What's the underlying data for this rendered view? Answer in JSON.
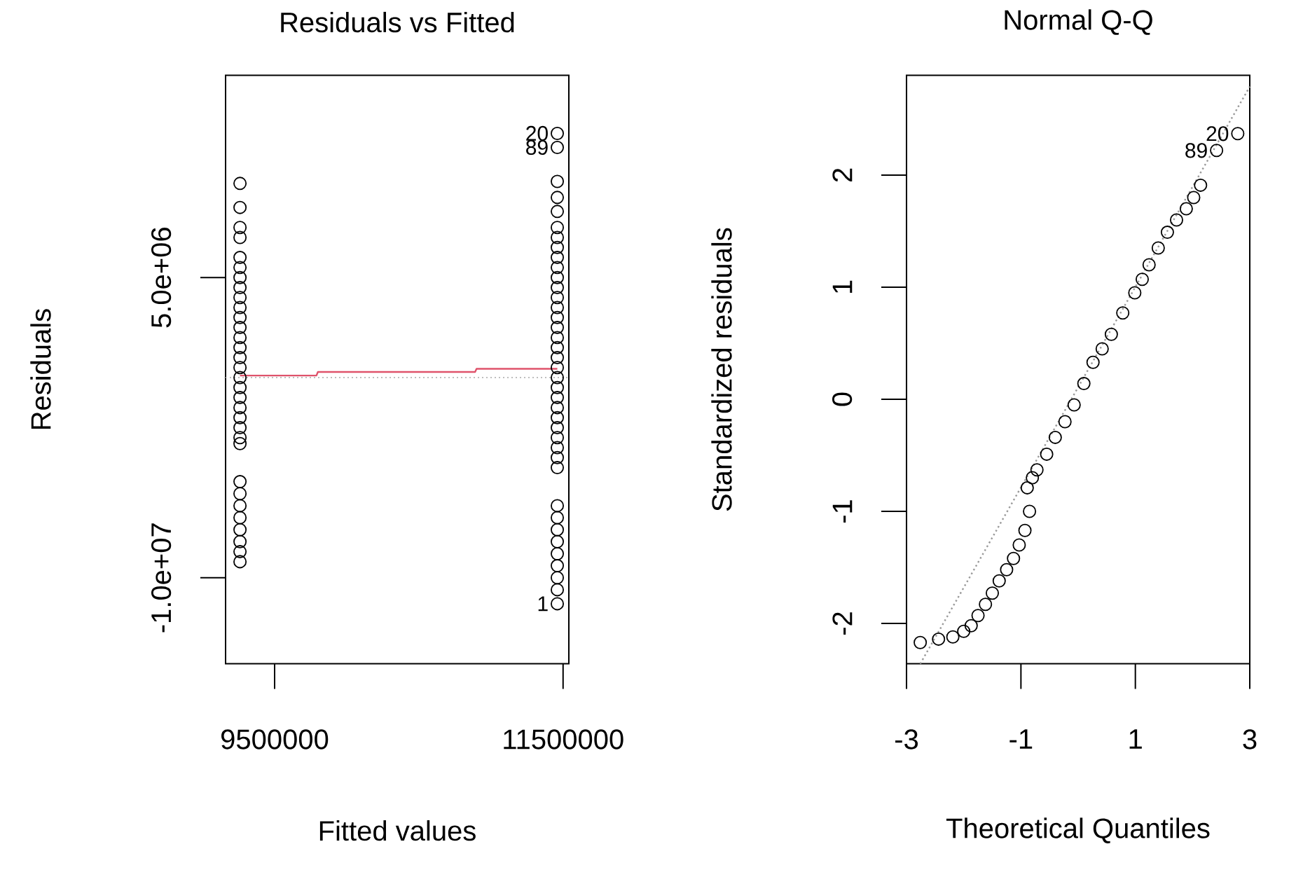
{
  "chart_data": [
    {
      "type": "scatter",
      "title": "Residuals vs Fitted",
      "xlabel": "Fitted values",
      "ylabel": "Residuals",
      "xlim": [
        9160000,
        11540000
      ],
      "ylim": [
        -14300000,
        15100000
      ],
      "xticks": [
        9500000,
        11500000
      ],
      "yticks": [
        {
          "value": -10000000,
          "label": "-1.0e+07"
        },
        {
          "value": 5000000,
          "label": "5.0e+06"
        }
      ],
      "series": [
        {
          "marker": "circle",
          "color": "#000000",
          "x": [
            9260000,
            9260000,
            9260000,
            9260000,
            9260000,
            9260000,
            9260000,
            9260000,
            9260000,
            9260000,
            9260000,
            9260000,
            9260000,
            9260000,
            9260000,
            9260000,
            9260000,
            9260000,
            9260000,
            9260000,
            9260000,
            9260000,
            9260000,
            9260000,
            9260000,
            9260000,
            9260000,
            9260000,
            9260000,
            9260000,
            9260000,
            9260000,
            11460000,
            11460000,
            11460000,
            11460000,
            11460000,
            11460000,
            11460000,
            11460000,
            11460000,
            11460000,
            11460000,
            11460000,
            11460000,
            11460000,
            11460000,
            11460000,
            11460000,
            11460000,
            11460000,
            11460000,
            11460000,
            11460000,
            11460000,
            11460000,
            11460000,
            11460000,
            11460000,
            11460000,
            11460000,
            11460000,
            11460000,
            11460000,
            11460000,
            11460000,
            11460000,
            11460000,
            11460000,
            11460000,
            11460000
          ],
          "values": [
            9700000,
            8500000,
            7500000,
            7000000,
            6000000,
            5500000,
            5000000,
            4500000,
            4000000,
            3500000,
            3000000,
            2500000,
            2000000,
            1500000,
            1000000,
            500000,
            0,
            -500000,
            -1000000,
            -1500000,
            -2000000,
            -2500000,
            -3000000,
            -3300000,
            -5200000,
            -5800000,
            -6400000,
            -7000000,
            -7600000,
            -8200000,
            -8700000,
            -9200000,
            12200000,
            11500000,
            9800000,
            9000000,
            8300000,
            7500000,
            7000000,
            6500000,
            6000000,
            5500000,
            5000000,
            4500000,
            4000000,
            3500000,
            3000000,
            2500000,
            2000000,
            1500000,
            1000000,
            500000,
            0,
            -500000,
            -1000000,
            -1500000,
            -2000000,
            -2500000,
            -3000000,
            -3500000,
            -4000000,
            -4500000,
            -6400000,
            -7000000,
            -7600000,
            -8200000,
            -8800000,
            -9400000,
            -10000000,
            -10600000,
            -11300000
          ]
        },
        {
          "type": "line",
          "color": "#df536b",
          "x": [
            9260000,
            9790000,
            9800000,
            10890000,
            10900000,
            11460000
          ],
          "values": [
            100000,
            100000,
            280000,
            280000,
            440000,
            440000
          ]
        }
      ],
      "ref_lines": [
        {
          "axis": "y",
          "value": 0,
          "color": "#bebebe",
          "line_style": "dotted"
        }
      ],
      "annotations": [
        {
          "text": "20",
          "x": 11460000,
          "y": 12200000
        },
        {
          "text": "89",
          "x": 11460000,
          "y": 11500000
        },
        {
          "text": "1",
          "x": 11460000,
          "y": -11300000
        }
      ]
    },
    {
      "type": "scatter",
      "title": "Normal Q-Q",
      "xlabel": "Theoretical Quantiles",
      "ylabel": "Standardized residuals",
      "xlim": [
        -3,
        3
      ],
      "ylim": [
        -2.36,
        2.89
      ],
      "xticks": [
        -3,
        -1,
        1,
        3
      ],
      "yticks": [
        -2,
        -1,
        0,
        1,
        2
      ],
      "series": [
        {
          "marker": "circle",
          "color": "#000000",
          "x": [
            -2.76,
            -2.44,
            -2.19,
            -2.0,
            -1.87,
            -1.75,
            -1.62,
            -1.5,
            -1.38,
            -1.25,
            -1.13,
            -1.03,
            -0.93,
            -0.85,
            -0.89,
            -0.8,
            -0.72,
            -0.55,
            -0.4,
            -0.23,
            -0.07,
            0.1,
            0.26,
            0.42,
            0.58,
            0.78,
            0.99,
            1.12,
            1.24,
            1.4,
            1.56,
            1.72,
            1.89,
            2.02,
            2.14,
            2.42,
            2.79
          ],
          "values": [
            -2.17,
            -2.14,
            -2.12,
            -2.07,
            -2.02,
            -1.93,
            -1.83,
            -1.73,
            -1.62,
            -1.52,
            -1.42,
            -1.3,
            -1.17,
            -1.0,
            -0.79,
            -0.7,
            -0.63,
            -0.49,
            -0.34,
            -0.2,
            -0.05,
            0.14,
            0.33,
            0.45,
            0.58,
            0.77,
            0.95,
            1.07,
            1.2,
            1.35,
            1.49,
            1.6,
            1.7,
            1.8,
            1.91,
            2.22,
            2.37
          ]
        },
        {
          "type": "line",
          "color": "#999999",
          "line_style": "dotted",
          "x": [
            -2.76,
            3.0
          ],
          "values": [
            -2.36,
            2.79
          ]
        }
      ],
      "annotations": [
        {
          "text": "20",
          "x": 2.79,
          "y": 2.37
        },
        {
          "text": "89",
          "x": 2.42,
          "y": 2.22
        }
      ]
    }
  ]
}
